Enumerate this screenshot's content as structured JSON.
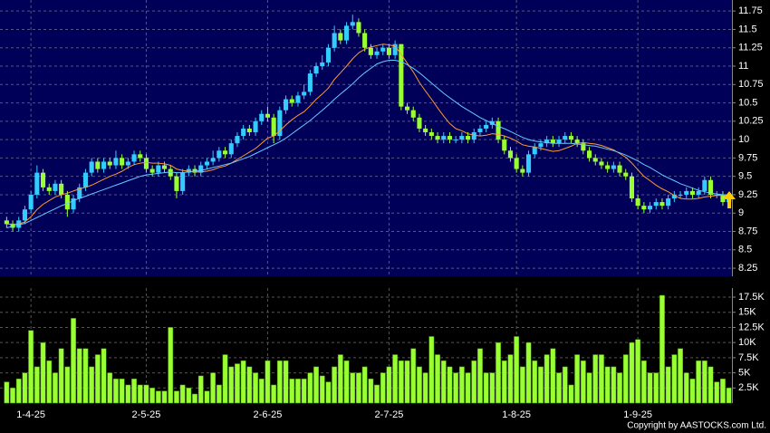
{
  "chart_data": [
    {
      "type": "candlestick",
      "up_color": "#33ccff",
      "down_color": "#99ff33",
      "ylim": [
        8.14,
        11.9
      ],
      "yticks": [
        8.25,
        8.5,
        8.75,
        9,
        9.25,
        9.5,
        9.75,
        10,
        10.25,
        10.5,
        10.75,
        11,
        11.25,
        11.5,
        11.75
      ],
      "grid": true,
      "open": [
        8.9,
        8.85,
        8.8,
        8.9,
        9.05,
        9.25,
        9.55,
        9.35,
        9.3,
        9.4,
        9.25,
        9.05,
        9.2,
        9.35,
        9.55,
        9.7,
        9.6,
        9.7,
        9.65,
        9.75,
        9.65,
        9.7,
        9.8,
        9.75,
        9.6,
        9.55,
        9.65,
        9.6,
        9.5,
        9.3,
        9.55,
        9.6,
        9.55,
        9.65,
        9.7,
        9.75,
        9.85,
        9.8,
        9.95,
        10.05,
        10.15,
        10.1,
        10.25,
        10.35,
        10.3,
        10.05,
        10.4,
        10.55,
        10.5,
        10.6,
        10.65,
        10.9,
        11.0,
        11.05,
        11.25,
        11.45,
        11.35,
        11.55,
        11.6,
        11.45,
        11.25,
        11.15,
        11.2,
        11.25,
        11.15,
        11.3,
        10.45,
        10.4,
        10.3,
        10.15,
        10.1,
        10.05,
        10.0,
        10.05,
        10.0,
        10.0,
        10.05,
        10.0,
        10.1,
        10.15,
        10.2,
        10.25,
        10.0,
        9.85,
        9.75,
        9.6,
        9.55,
        9.8,
        9.9,
        9.95,
        10.0,
        9.95,
        10.0,
        10.05,
        10.0,
        9.95,
        9.85,
        9.75,
        9.7,
        9.65,
        9.6,
        9.65,
        9.55,
        9.5,
        9.2,
        9.1,
        9.05,
        9.1,
        9.15,
        9.1,
        9.2,
        9.25,
        9.25,
        9.3,
        9.25,
        9.3,
        9.45,
        9.25,
        9.25,
        9.15
      ],
      "high": [
        8.95,
        8.9,
        8.95,
        9.1,
        9.3,
        9.65,
        9.6,
        9.4,
        9.45,
        9.45,
        9.3,
        9.25,
        9.4,
        9.6,
        9.75,
        9.75,
        9.75,
        9.75,
        9.85,
        9.8,
        9.75,
        9.85,
        9.85,
        9.8,
        9.65,
        9.7,
        9.7,
        9.65,
        9.55,
        9.6,
        9.65,
        9.65,
        9.7,
        9.75,
        9.85,
        9.9,
        9.9,
        10.0,
        10.1,
        10.2,
        10.2,
        10.3,
        10.4,
        10.45,
        10.35,
        10.45,
        10.6,
        10.6,
        10.65,
        10.75,
        10.95,
        11.05,
        11.15,
        11.3,
        11.55,
        11.5,
        11.6,
        11.7,
        11.65,
        11.5,
        11.3,
        11.25,
        11.3,
        11.3,
        11.35,
        11.3,
        10.5,
        10.45,
        10.35,
        10.2,
        10.15,
        10.1,
        10.1,
        10.1,
        10.05,
        10.1,
        10.1,
        10.15,
        10.2,
        10.25,
        10.3,
        10.3,
        10.05,
        9.9,
        9.8,
        9.65,
        9.85,
        9.95,
        10.0,
        10.05,
        10.05,
        10.05,
        10.1,
        10.1,
        10.05,
        10.0,
        9.9,
        9.8,
        9.75,
        9.7,
        9.7,
        9.7,
        9.6,
        9.55,
        9.25,
        9.15,
        9.15,
        9.2,
        9.2,
        9.25,
        9.3,
        9.3,
        9.35,
        9.35,
        9.35,
        9.5,
        9.5,
        9.3,
        9.3,
        9.25
      ],
      "low": [
        8.8,
        8.75,
        8.75,
        8.85,
        9.0,
        9.2,
        9.3,
        9.25,
        9.25,
        9.2,
        8.95,
        9.0,
        9.15,
        9.3,
        9.5,
        9.55,
        9.55,
        9.6,
        9.6,
        9.6,
        9.6,
        9.65,
        9.7,
        9.55,
        9.5,
        9.5,
        9.55,
        9.45,
        9.2,
        9.25,
        9.5,
        9.5,
        9.5,
        9.6,
        9.65,
        9.7,
        9.75,
        9.75,
        9.9,
        10.0,
        10.05,
        10.05,
        10.2,
        10.25,
        9.95,
        10.0,
        10.35,
        10.45,
        10.45,
        10.55,
        10.6,
        10.85,
        10.95,
        11.0,
        11.2,
        11.3,
        11.3,
        11.5,
        11.4,
        11.2,
        11.1,
        11.1,
        11.15,
        11.1,
        11.1,
        10.4,
        10.35,
        10.25,
        10.1,
        10.05,
        10.0,
        9.95,
        9.95,
        9.95,
        9.95,
        9.95,
        9.95,
        9.95,
        10.05,
        10.1,
        10.15,
        9.95,
        9.8,
        9.7,
        9.55,
        9.5,
        9.5,
        9.75,
        9.85,
        9.9,
        9.9,
        9.9,
        9.95,
        9.95,
        9.9,
        9.8,
        9.7,
        9.65,
        9.6,
        9.55,
        9.55,
        9.5,
        9.45,
        9.15,
        9.05,
        9.0,
        9.0,
        9.05,
        9.05,
        9.05,
        9.15,
        9.2,
        9.2,
        9.2,
        9.2,
        9.25,
        9.2,
        9.2,
        9.1,
        9.1
      ],
      "close": [
        8.85,
        8.8,
        8.9,
        9.05,
        9.25,
        9.55,
        9.35,
        9.3,
        9.4,
        9.25,
        9.05,
        9.2,
        9.35,
        9.55,
        9.7,
        9.6,
        9.7,
        9.65,
        9.75,
        9.65,
        9.7,
        9.8,
        9.75,
        9.6,
        9.55,
        9.65,
        9.6,
        9.5,
        9.3,
        9.55,
        9.6,
        9.55,
        9.65,
        9.7,
        9.75,
        9.85,
        9.8,
        9.95,
        10.05,
        10.15,
        10.1,
        10.25,
        10.35,
        10.3,
        10.05,
        10.4,
        10.55,
        10.5,
        10.6,
        10.65,
        10.9,
        11.0,
        11.05,
        11.25,
        11.45,
        11.35,
        11.55,
        11.6,
        11.45,
        11.25,
        11.15,
        11.2,
        11.25,
        11.15,
        11.3,
        10.45,
        10.4,
        10.3,
        10.15,
        10.1,
        10.05,
        10.0,
        10.05,
        10.0,
        10.0,
        10.05,
        10.0,
        10.1,
        10.15,
        10.2,
        10.25,
        10.0,
        9.85,
        9.75,
        9.6,
        9.55,
        9.8,
        9.9,
        9.95,
        10.0,
        9.95,
        10.0,
        10.05,
        10.0,
        9.95,
        9.85,
        9.75,
        9.7,
        9.65,
        9.6,
        9.65,
        9.55,
        9.5,
        9.2,
        9.1,
        9.05,
        9.1,
        9.15,
        9.1,
        9.2,
        9.25,
        9.25,
        9.3,
        9.25,
        9.3,
        9.45,
        9.25,
        9.25,
        9.15,
        9.2
      ],
      "series": [
        {
          "color": "#ff9933",
          "values": [
            8.85,
            8.85,
            8.85,
            8.88,
            8.95,
            9.05,
            9.12,
            9.17,
            9.22,
            9.25,
            9.27,
            9.3,
            9.33,
            9.35,
            9.38,
            9.42,
            9.46,
            9.5,
            9.53,
            9.57,
            9.62,
            9.66,
            9.68,
            9.69,
            9.68,
            9.68,
            9.67,
            9.65,
            9.6,
            9.58,
            9.57,
            9.56,
            9.56,
            9.57,
            9.59,
            9.62,
            9.64,
            9.68,
            9.73,
            9.78,
            9.83,
            9.88,
            9.95,
            10.02,
            10.05,
            10.12,
            10.2,
            10.27,
            10.33,
            10.38,
            10.46,
            10.55,
            10.62,
            10.7,
            10.82,
            10.91,
            11.0,
            11.1,
            11.18,
            11.23,
            11.26,
            11.28,
            11.3,
            11.29,
            11.27,
            11.16,
            11.04,
            10.92,
            10.78,
            10.66,
            10.55,
            10.43,
            10.32,
            10.22,
            10.15,
            10.12,
            10.08,
            10.06,
            10.05,
            10.06,
            10.08,
            10.07,
            10.05,
            10.02,
            9.98,
            9.93,
            9.91,
            9.9,
            9.88,
            9.86,
            9.84,
            9.85,
            9.88,
            9.91,
            9.95,
            9.96,
            9.95,
            9.94,
            9.92,
            9.89,
            9.86,
            9.81,
            9.76,
            9.68,
            9.59,
            9.5,
            9.44,
            9.38,
            9.33,
            9.29,
            9.24,
            9.2,
            9.19,
            9.19,
            9.2,
            9.22,
            9.23,
            9.24,
            9.24,
            9.24
          ]
        },
        {
          "color": "#66ccff",
          "values": [
            8.8,
            8.82,
            8.84,
            8.86,
            8.9,
            8.94,
            8.98,
            9.02,
            9.06,
            9.1,
            9.13,
            9.17,
            9.2,
            9.23,
            9.26,
            9.29,
            9.32,
            9.35,
            9.38,
            9.41,
            9.44,
            9.47,
            9.5,
            9.52,
            9.53,
            9.54,
            9.55,
            9.56,
            9.55,
            9.55,
            9.56,
            9.57,
            9.58,
            9.6,
            9.62,
            9.64,
            9.66,
            9.68,
            9.71,
            9.74,
            9.77,
            9.81,
            9.85,
            9.89,
            9.93,
            9.97,
            10.02,
            10.08,
            10.14,
            10.2,
            10.26,
            10.33,
            10.4,
            10.47,
            10.55,
            10.62,
            10.69,
            10.76,
            10.84,
            10.91,
            10.97,
            11.03,
            11.06,
            11.08,
            11.08,
            11.06,
            11.02,
            10.97,
            10.91,
            10.84,
            10.77,
            10.7,
            10.63,
            10.57,
            10.51,
            10.45,
            10.4,
            10.35,
            10.3,
            10.26,
            10.22,
            10.18,
            10.15,
            10.11,
            10.07,
            10.03,
            10.0,
            9.98,
            9.97,
            9.96,
            9.95,
            9.95,
            9.95,
            9.95,
            9.94,
            9.93,
            9.92,
            9.91,
            9.89,
            9.87,
            9.85,
            9.82,
            9.79,
            9.75,
            9.71,
            9.66,
            9.62,
            9.57,
            9.52,
            9.48,
            9.44,
            9.4,
            9.37,
            9.34,
            9.31,
            9.29,
            9.27,
            9.26,
            9.25,
            9.25
          ]
        }
      ]
    },
    {
      "type": "bar",
      "color": "#99ff33",
      "ylim": [
        0,
        19000
      ],
      "yticks": [
        {
          "value": 2500,
          "label": "2.5K"
        },
        {
          "value": 5000,
          "label": "5K"
        },
        {
          "value": 7500,
          "label": "7.5K"
        },
        {
          "value": 10000,
          "label": "10K"
        },
        {
          "value": 12500,
          "label": "12.5K"
        },
        {
          "value": 15000,
          "label": "15K"
        },
        {
          "value": 17500,
          "label": "17.5K"
        }
      ],
      "grid": true,
      "categories": [
        null,
        null,
        null,
        null,
        "1-4-25",
        null,
        null,
        null,
        null,
        null,
        null,
        null,
        null,
        null,
        null,
        null,
        null,
        null,
        null,
        null,
        null,
        null,
        null,
        "2-5-25",
        null,
        null,
        null,
        null,
        null,
        null,
        null,
        null,
        null,
        null,
        null,
        null,
        null,
        null,
        null,
        null,
        null,
        null,
        null,
        "2-6-25",
        null,
        null,
        null,
        null,
        null,
        null,
        null,
        null,
        null,
        null,
        null,
        null,
        null,
        null,
        null,
        null,
        null,
        null,
        null,
        "2-7-25",
        null,
        null,
        null,
        null,
        null,
        null,
        null,
        null,
        null,
        null,
        null,
        null,
        null,
        null,
        null,
        null,
        null,
        null,
        null,
        null,
        "1-8-25",
        null,
        null,
        null,
        null,
        null,
        null,
        null,
        null,
        null,
        null,
        null,
        null,
        null,
        null,
        null,
        null,
        null,
        null,
        null,
        "1-9-25",
        null,
        null,
        null,
        null,
        null,
        null,
        null,
        null,
        null,
        null,
        null,
        null,
        null,
        null,
        null
      ],
      "values": [
        3500,
        2500,
        4000,
        5000,
        12000,
        6000,
        10000,
        7000,
        5000,
        9000,
        6000,
        14000,
        9000,
        9000,
        6000,
        8000,
        9000,
        5000,
        4000,
        4000,
        3000,
        4000,
        3000,
        3000,
        2500,
        2000,
        2000,
        12500,
        2000,
        3000,
        2500,
        1500,
        4500,
        2000,
        5000,
        3000,
        8000,
        6000,
        6500,
        7000,
        6000,
        5000,
        4000,
        7000,
        3000,
        7000,
        7000,
        4000,
        4000,
        4000,
        5000,
        6000,
        4500,
        3500,
        6000,
        8000,
        7000,
        5000,
        5000,
        6000,
        4000,
        3000,
        5000,
        6000,
        8000,
        7000,
        7000,
        9000,
        6000,
        5000,
        11000,
        8000,
        7000,
        6000,
        5000,
        6000,
        5000,
        7000,
        9000,
        5000,
        5000,
        10000,
        7000,
        8000,
        11000,
        6000,
        10000,
        7000,
        6000,
        8000,
        9000,
        5000,
        6000,
        3000,
        8000,
        7000,
        5000,
        8000,
        8000,
        6000,
        6000,
        5000,
        8000,
        10000,
        10500,
        7000,
        5000,
        5000,
        17800,
        6000,
        8000,
        9000,
        5000,
        4000,
        7000,
        7000,
        6000,
        3500,
        4000,
        2500
      ]
    }
  ],
  "copyright": "Copyright by AASTOCKS.com Ltd."
}
